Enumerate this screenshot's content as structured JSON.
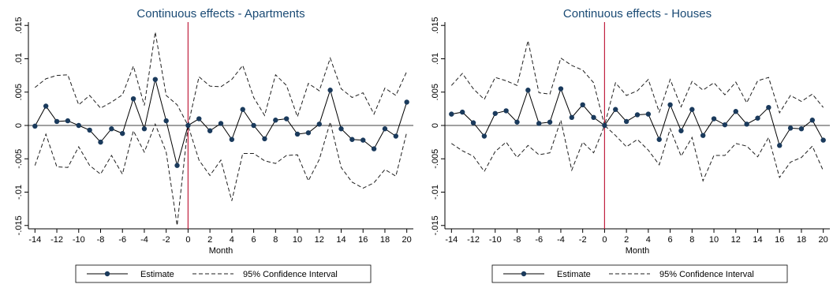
{
  "colors": {
    "title": "#1a4a74",
    "estimate": "#1a3a5c",
    "ci": "#1f1f1f",
    "zero_line": "#c0213f",
    "axis": "#000000"
  },
  "chart_data": [
    {
      "type": "line",
      "title": "Continuous effects - Apartments",
      "xlabel": "Month",
      "ylabel": "",
      "xlim": [
        -14.6,
        20.6
      ],
      "ylim": [
        -0.0155,
        0.0155
      ],
      "x_ticks": [
        -14,
        -12,
        -10,
        -8,
        -6,
        -4,
        -2,
        0,
        2,
        4,
        6,
        8,
        10,
        12,
        14,
        16,
        18,
        20
      ],
      "x_tick_labels": [
        "-14",
        "-12",
        "-10",
        "-8",
        "-6",
        "-4",
        "-2",
        "0",
        "2",
        "4",
        "6",
        "8",
        "10",
        "12",
        "14",
        "16",
        "18",
        "20"
      ],
      "y_ticks": [
        -0.015,
        -0.01,
        -0.005,
        0,
        0.005,
        0.01,
        0.015
      ],
      "y_tick_labels": [
        "-.015",
        "-.01",
        "-.005",
        "0",
        ".005",
        ".01",
        ".015"
      ],
      "vline_x": 0,
      "hline_y": 0,
      "grid": false,
      "legend": {
        "position": "bottom",
        "entries": [
          "Estimate",
          "95% Confidence Interval"
        ]
      },
      "x": [
        -14,
        -13,
        -12,
        -11,
        -10,
        -9,
        -8,
        -7,
        -6,
        -5,
        -4,
        -3,
        -2,
        -1,
        0,
        1,
        2,
        3,
        4,
        5,
        6,
        7,
        8,
        9,
        10,
        11,
        12,
        13,
        14,
        15,
        16,
        17,
        18,
        19,
        20
      ],
      "series": [
        {
          "name": "Estimate",
          "style": "solid-markers",
          "values": [
            -0.0001,
            0.0029,
            0.0006,
            0.0007,
            0.0,
            -0.0007,
            -0.0025,
            -0.0005,
            -0.0012,
            0.004,
            -0.0005,
            0.0069,
            0.0007,
            -0.006,
            0.0,
            0.001,
            -0.0008,
            0.0003,
            -0.0021,
            0.0024,
            0.0,
            -0.002,
            0.0008,
            0.001,
            -0.0013,
            -0.0011,
            0.0002,
            0.0053,
            -0.0005,
            -0.0021,
            -0.0022,
            -0.0035,
            -0.0005,
            -0.0016,
            0.0035
          ]
        },
        {
          "name": "95% Confidence Interval (upper)",
          "style": "dashed",
          "values": [
            0.0057,
            0.007,
            0.0075,
            0.0076,
            0.0031,
            0.0045,
            0.0026,
            0.0035,
            0.0046,
            0.0089,
            0.003,
            0.014,
            0.0045,
            0.0031,
            0.0,
            0.0073,
            0.0059,
            0.0058,
            0.0069,
            0.009,
            0.0042,
            0.0015,
            0.0076,
            0.006,
            0.0013,
            0.0063,
            0.0052,
            0.0101,
            0.0055,
            0.0042,
            0.0049,
            0.0017,
            0.0056,
            0.0045,
            0.0081
          ]
        },
        {
          "name": "95% Confidence Interval (lower)",
          "style": "dashed",
          "values": [
            -0.006,
            -0.0013,
            -0.0062,
            -0.0063,
            -0.0032,
            -0.006,
            -0.0073,
            -0.0045,
            -0.0073,
            -0.0008,
            -0.004,
            0.0002,
            -0.004,
            -0.015,
            0.0,
            -0.0052,
            -0.0075,
            -0.0052,
            -0.0113,
            -0.0042,
            -0.0042,
            -0.0053,
            -0.0057,
            -0.0045,
            -0.0044,
            -0.0083,
            -0.0051,
            0.0005,
            -0.0063,
            -0.0085,
            -0.0094,
            -0.0086,
            -0.0066,
            -0.0076,
            -0.001
          ]
        }
      ]
    },
    {
      "type": "line",
      "title": "Continuous effects - Houses",
      "xlabel": "Month",
      "ylabel": "",
      "xlim": [
        -14.6,
        20.6
      ],
      "ylim": [
        -0.0155,
        0.0155
      ],
      "x_ticks": [
        -14,
        -12,
        -10,
        -8,
        -6,
        -4,
        -2,
        0,
        2,
        4,
        6,
        8,
        10,
        12,
        14,
        16,
        18,
        20
      ],
      "x_tick_labels": [
        "-14",
        "-12",
        "-10",
        "-8",
        "-6",
        "-4",
        "-2",
        "0",
        "2",
        "4",
        "6",
        "8",
        "10",
        "12",
        "14",
        "16",
        "18",
        "20"
      ],
      "y_ticks": [
        -0.015,
        -0.01,
        -0.005,
        0,
        0.005,
        0.01,
        0.015
      ],
      "y_tick_labels": [
        "-.015",
        "-.01",
        "-.005",
        "0",
        ".005",
        ".01",
        ".015"
      ],
      "vline_x": 0,
      "hline_y": 0,
      "grid": false,
      "legend": {
        "position": "bottom",
        "entries": [
          "Estimate",
          "95% Confidence Interval"
        ]
      },
      "x": [
        -14,
        -13,
        -12,
        -11,
        -10,
        -9,
        -8,
        -7,
        -6,
        -5,
        -4,
        -3,
        -2,
        -1,
        0,
        1,
        2,
        3,
        4,
        5,
        6,
        7,
        8,
        9,
        10,
        11,
        12,
        13,
        14,
        15,
        16,
        17,
        18,
        19,
        20
      ],
      "series": [
        {
          "name": "Estimate",
          "style": "solid-markers",
          "values": [
            0.0017,
            0.002,
            0.0004,
            -0.0016,
            0.0018,
            0.0022,
            0.0005,
            0.0053,
            0.0003,
            0.0005,
            0.0055,
            0.0012,
            0.0031,
            0.0012,
            0.0,
            0.0024,
            0.0006,
            0.0016,
            0.0017,
            -0.0021,
            0.0031,
            -0.0008,
            0.0024,
            -0.0015,
            0.001,
            0.0001,
            0.0021,
            0.0002,
            0.0011,
            0.0027,
            -0.003,
            -0.0004,
            -0.0005,
            0.0008,
            -0.0022
          ]
        },
        {
          "name": "95% Confidence Interval (upper)",
          "style": "dashed",
          "values": [
            0.006,
            0.0078,
            0.0055,
            0.0039,
            0.0072,
            0.0067,
            0.006,
            0.0127,
            0.0049,
            0.0047,
            0.0101,
            0.009,
            0.0083,
            0.0064,
            0.0,
            0.0064,
            0.0045,
            0.0052,
            0.0069,
            0.002,
            0.0069,
            0.0028,
            0.0066,
            0.0053,
            0.0064,
            0.0046,
            0.0065,
            0.0034,
            0.0067,
            0.0072,
            0.0019,
            0.0045,
            0.0036,
            0.0047,
            0.0027
          ]
        },
        {
          "name": "95% Confidence Interval (lower)",
          "style": "dashed",
          "values": [
            -0.0027,
            -0.0038,
            -0.0046,
            -0.0069,
            -0.0039,
            -0.0025,
            -0.0048,
            -0.003,
            -0.0044,
            -0.0041,
            0.0008,
            -0.0067,
            -0.0025,
            -0.0041,
            0.0,
            -0.0015,
            -0.0032,
            -0.0021,
            -0.0037,
            -0.0059,
            -0.0005,
            -0.0046,
            -0.0018,
            -0.0083,
            -0.0045,
            -0.0045,
            -0.0027,
            -0.0031,
            -0.0047,
            -0.0018,
            -0.0078,
            -0.0055,
            -0.0048,
            -0.0031,
            -0.0068
          ]
        }
      ]
    }
  ]
}
